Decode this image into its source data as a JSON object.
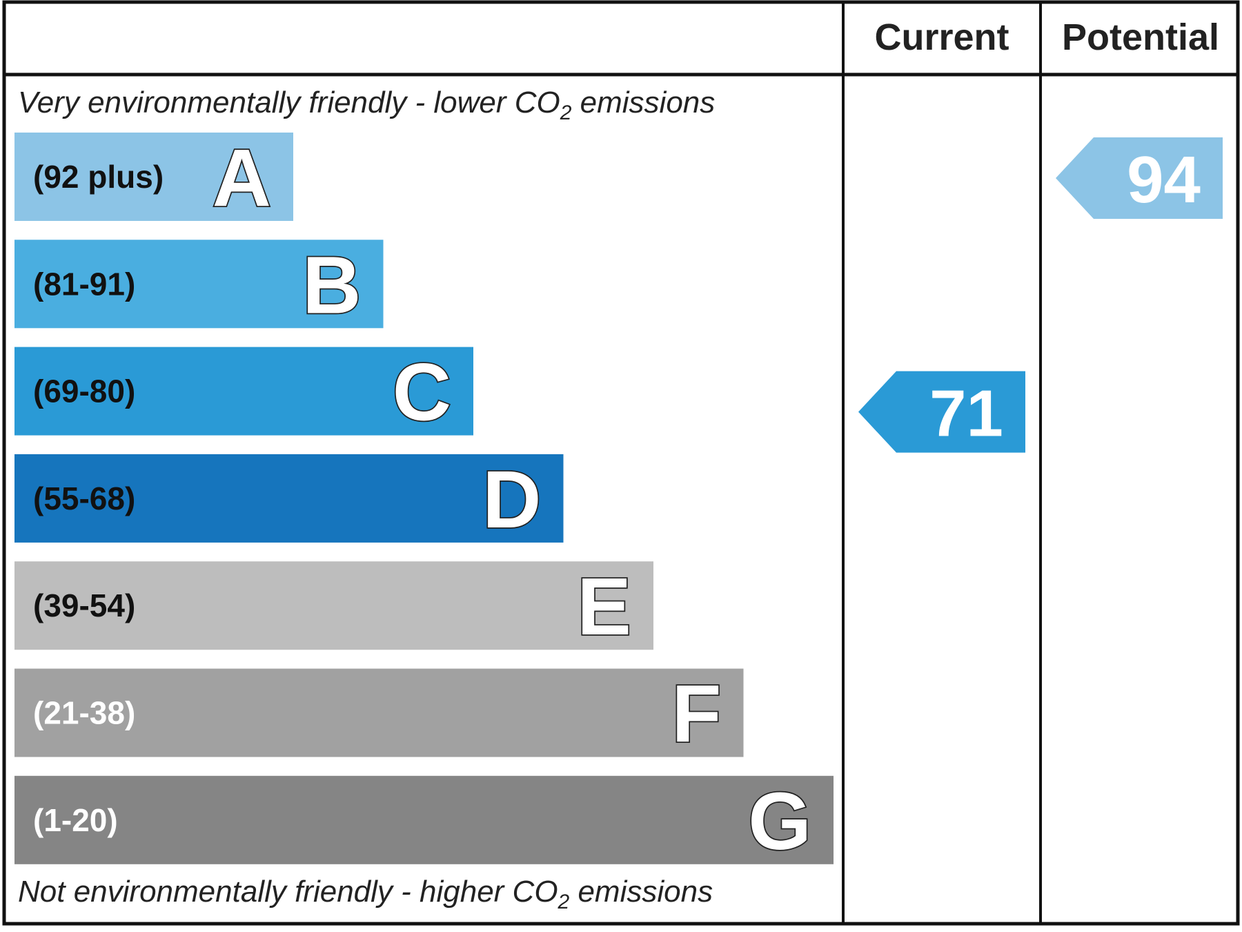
{
  "header": {
    "current_label": "Current",
    "potential_label": "Potential"
  },
  "captions": {
    "top_prefix": "Very environmentally friendly - lower CO",
    "top_sub": "2",
    "top_suffix": " emissions",
    "bottom_prefix": "Not environmentally friendly - higher CO",
    "bottom_sub": "2",
    "bottom_suffix": " emissions"
  },
  "chart_data": {
    "type": "bar",
    "bands": [
      {
        "letter": "A",
        "range": "(92 plus)",
        "min": 92,
        "max": 100,
        "color": "#8cc4e6",
        "text_color": "#111111"
      },
      {
        "letter": "B",
        "range": "(81-91)",
        "min": 81,
        "max": 91,
        "color": "#4aaee0",
        "text_color": "#111111"
      },
      {
        "letter": "C",
        "range": "(69-80)",
        "min": 69,
        "max": 80,
        "color": "#2a9ad6",
        "text_color": "#111111"
      },
      {
        "letter": "D",
        "range": "(55-68)",
        "min": 55,
        "max": 68,
        "color": "#1675bd",
        "text_color": "#111111"
      },
      {
        "letter": "E",
        "range": "(39-54)",
        "min": 39,
        "max": 54,
        "color": "#bdbdbd",
        "text_color": "#111111"
      },
      {
        "letter": "F",
        "range": "(21-38)",
        "min": 21,
        "max": 38,
        "color": "#a1a1a1",
        "text_color": "#ffffff"
      },
      {
        "letter": "G",
        "range": "(1-20)",
        "min": 1,
        "max": 20,
        "color": "#858585",
        "text_color": "#ffffff"
      }
    ],
    "current": {
      "value": 71,
      "band": "C",
      "color": "#2a9ad6"
    },
    "potential": {
      "value": 94,
      "band": "A",
      "color": "#8cc4e6"
    }
  }
}
